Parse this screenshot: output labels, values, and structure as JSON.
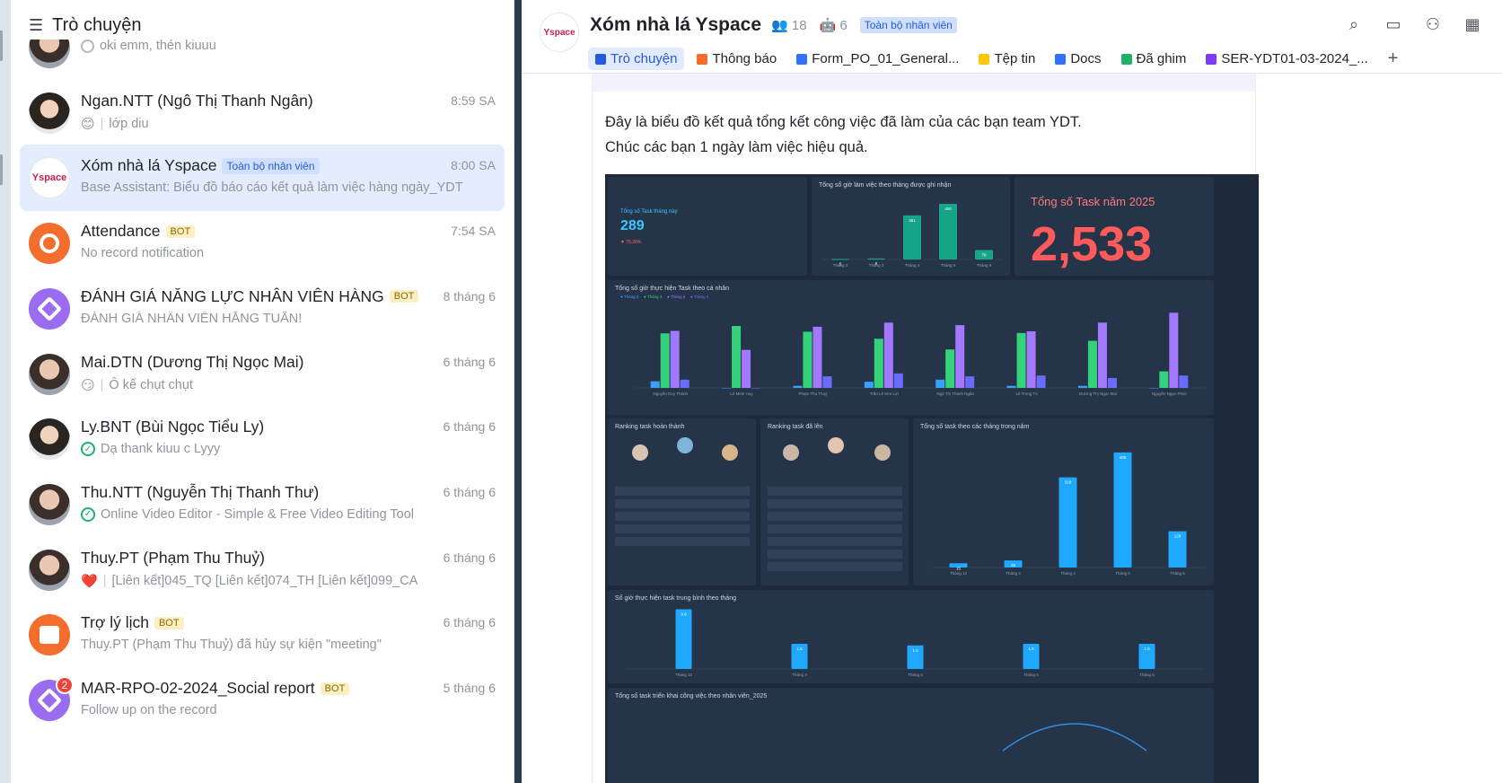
{
  "sidebar": {
    "title": "Trò chuyện",
    "items": [
      {
        "title": "",
        "time": "",
        "preview": "oki emm, thén kiuuu",
        "status": "pending"
      },
      {
        "title": "Ngan.NTT (Ngô Thị Thanh Ngân)",
        "time": "8:59 SA",
        "preview": "lớp diu",
        "emoji": "😊"
      },
      {
        "title": "Xóm nhà lá Yspace",
        "tag": "Toàn bộ nhân viên",
        "time": "8:00 SA",
        "preview": "Base Assistant: Biểu đồ báo cáo kết quả làm việc hàng ngày_YDT"
      },
      {
        "title": "Attendance",
        "bot": "BOT",
        "time": "7:54 SA",
        "preview": "No record notification"
      },
      {
        "title": "ĐÁNH GIÁ NĂNG LỰC NHÂN VIÊN HÀNG",
        "bot": "BOT",
        "time": "8 tháng 6",
        "preview": "ĐÁNH GIÁ NHÂN VIÊN HẰNG TUẦN!"
      },
      {
        "title": "Mai.DTN (Dương Thị Ngọc Mai)",
        "time": "6 tháng 6",
        "preview": "Ô kế chụt chụt",
        "emoji": "😏"
      },
      {
        "title": "Ly.BNT (Bùi Ngọc Tiểu Ly)",
        "time": "6 tháng 6",
        "preview": "Dạ thank kiuu c Lyyy"
      },
      {
        "title": "Thu.NTT (Nguyễn Thị Thanh Thư)",
        "time": "6 tháng 6",
        "preview": "Online Video Editor - Simple & Free Video Editing Tool"
      },
      {
        "title": "Thuy.PT (Phạm Thu Thuỷ)",
        "time": "6 tháng 6",
        "preview": "[Liên kết]045_TQ [Liên kết]074_TH [Liên kết]099_CA",
        "emoji": "❤️"
      },
      {
        "title": "Trợ lý lịch",
        "bot": "BOT",
        "time": "6 tháng 6",
        "preview": "Thuy.PT (Phạm Thu Thuỷ) đã hủy sự kiện \"meeting\""
      },
      {
        "title": "MAR-RPO-02-2024_Social report",
        "bot": "BOT",
        "time": "5 tháng 6",
        "preview": "Follow up on the record",
        "unread": "2"
      }
    ]
  },
  "chat": {
    "logo_text": "Yspace",
    "title": "Xóm nhà lá Yspace",
    "members": "18",
    "bots": "6",
    "tag": "Toàn bộ nhân viên",
    "tabs": [
      {
        "label": "Trò chuyện",
        "icon": "chat-icon",
        "color": "#245bdb"
      },
      {
        "label": "Thông báo",
        "icon": "megaphone-icon",
        "color": "#f36d2d"
      },
      {
        "label": "Form_PO_01_General...",
        "icon": "doc-icon",
        "color": "#3370ff"
      },
      {
        "label": "Tệp tin",
        "icon": "folder-icon",
        "color": "#ffc60a"
      },
      {
        "label": "Docs",
        "icon": "docs-icon",
        "color": "#3370ff"
      },
      {
        "label": "Đã ghim",
        "icon": "pin-icon",
        "color": "#20b26b"
      },
      {
        "label": "SER-YDT01-03-2024_...",
        "icon": "base-icon",
        "color": "#7f3bf5"
      }
    ],
    "add_tab": "+",
    "message_lines": [
      "Đây là biểu đồ kết quả tổng kết công việc đã làm của các bạn team YDT.",
      "Chúc các bạn 1 ngày làm việc hiệu quả."
    ]
  },
  "dashboard": {
    "kpi_label": "Tổng số Task tháng này",
    "kpi_value": "289",
    "kpi_sub": "▼ 75.26%",
    "monthly_hours_title": "Tổng số giờ làm việc theo tháng được ghi nhận",
    "year_title": "Tổng số Task năm 2025",
    "year_value": "2,533",
    "personal_title": "Tổng số giờ thực hiện Task theo cá nhân",
    "ranking_done_title": "Ranking task hoàn thành",
    "ranking_received_title": "Ranking task đã lên",
    "tasks_by_month_title": "Tổng số task theo các tháng trong năm",
    "avg_hours_title": "Số giờ thực hiện task trung bình theo tháng",
    "deploy_title": "Tổng số task triển khai công việc theo nhân viên_2025"
  },
  "chart_data": [
    {
      "type": "bar",
      "title": "Tổng số giờ làm việc theo tháng được ghi nhận",
      "categories": [
        "Tháng 2",
        "Tháng 3",
        "Tháng 4",
        "Tháng 5",
        "Tháng 6"
      ],
      "values": [
        5,
        8,
        361,
        456,
        78
      ],
      "ylim": [
        0,
        500
      ]
    },
    {
      "type": "bar",
      "title": "Tổng số giờ thực hiện Task theo cá nhân",
      "categories": [
        "Nguyễn Duy Thành",
        "Lê Minh Huy",
        "Phạm Thu Thuỷ",
        "Trần Lê Kim Lợi",
        "Ngô Thị Thanh Ngân",
        "Lê Trung Tú",
        "Dương Thị Ngọc Mai",
        "Nguyễn Ngọc Phúc"
      ],
      "series": [
        {
          "name": "Tháng 3",
          "values": [
            16,
            0,
            5,
            15,
            20,
            5,
            5,
            0
          ]
        },
        {
          "name": "Tháng 4",
          "values": [
            132,
            150,
            136,
            119,
            93,
            133,
            114,
            40
          ]
        },
        {
          "name": "Tháng 5",
          "values": [
            138,
            92,
            148,
            158,
            152,
            137,
            158,
            182
          ]
        },
        {
          "name": "Tháng 6",
          "values": [
            20,
            0,
            28,
            35,
            28,
            30,
            24,
            30
          ]
        }
      ],
      "ylim": [
        0,
        200
      ],
      "colors": [
        "#3aa0ff",
        "#34d27a",
        "#a278ff",
        "#6a6cff"
      ]
    },
    {
      "type": "bar",
      "title": "Tổng số task theo các tháng trong năm",
      "categories": [
        "Tháng 12",
        "Tháng 3",
        "Tháng 4",
        "Tháng 5",
        "Tháng 6"
      ],
      "values": [
        15,
        25,
        318,
        406,
        128
      ],
      "ylim": [
        0,
        450
      ]
    },
    {
      "type": "bar",
      "title": "Số giờ thực hiện task trung bình theo tháng",
      "categories": [
        "Tháng 12",
        "Tháng 3",
        "Tháng 4",
        "Tháng 5",
        "Tháng 6"
      ],
      "values": [
        3.8,
        1.6,
        1.5,
        1.6,
        1.6
      ],
      "ylim": [
        0,
        4
      ]
    }
  ],
  "colors": {
    "accent": "#245bdb",
    "dashboard_bg": "#1e2a3b",
    "panel_bg": "#263449",
    "bar_blue": "#1fa8ff",
    "bar_green": "#34d27a",
    "bar_purple": "#a278ff",
    "teal": "#17a589",
    "red": "#ff5b5b"
  }
}
